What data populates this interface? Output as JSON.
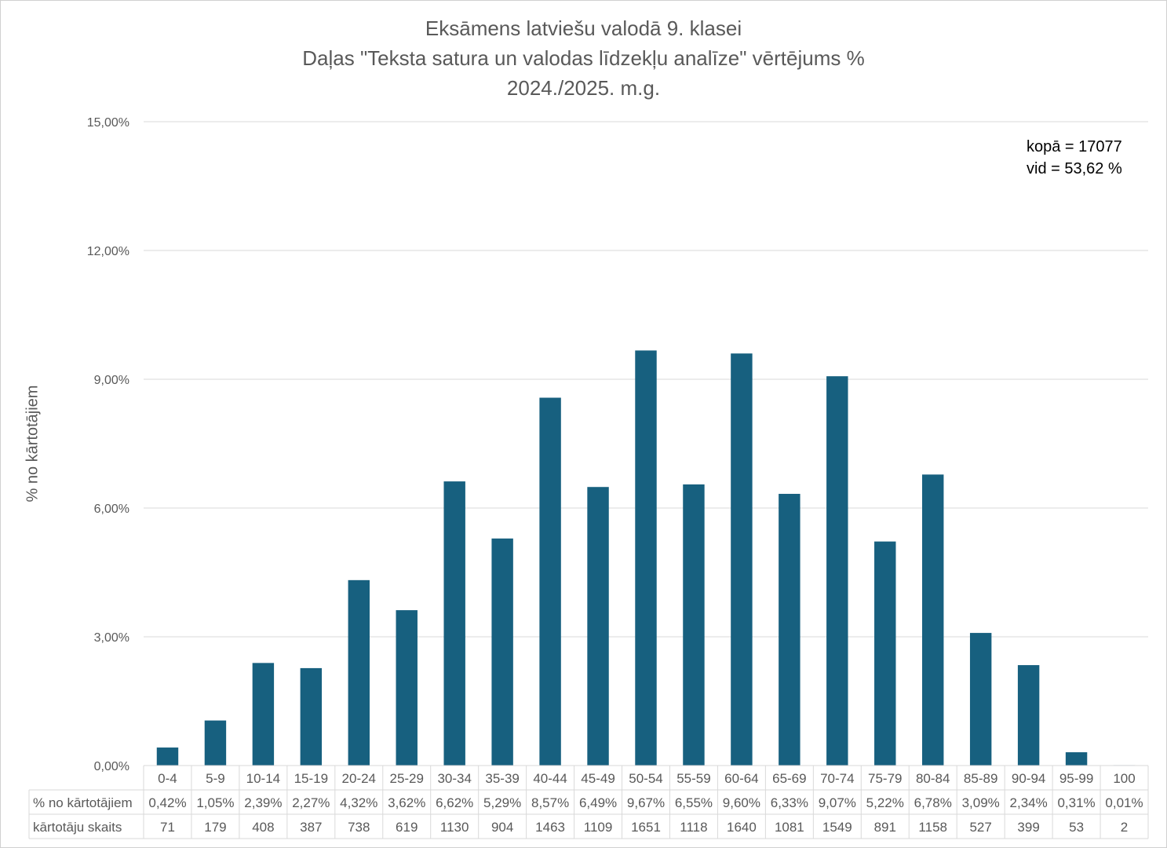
{
  "chart_data": {
    "type": "bar",
    "title_lines": [
      "Eksāmens latviešu valodā 9. klasei",
      "Daļas \"Teksta satura un valodas līdzekļu analīze\" vērtējums %",
      "2024./2025. m.g."
    ],
    "ylabel": "% no kārtotājiem",
    "ylim": [
      0,
      15
    ],
    "yticks": [
      "0,00%",
      "3,00%",
      "6,00%",
      "9,00%",
      "12,00%",
      "15,00%"
    ],
    "ytick_values": [
      0,
      3,
      6,
      9,
      12,
      15
    ],
    "grid": true,
    "legend": "none",
    "annotation": [
      "kopā = 17077",
      "vid = 53,62 %"
    ],
    "categories": [
      "0-4",
      "5-9",
      "10-14",
      "15-19",
      "20-24",
      "25-29",
      "30-34",
      "35-39",
      "40-44",
      "45-49",
      "50-54",
      "55-59",
      "60-64",
      "65-69",
      "70-74",
      "75-79",
      "80-84",
      "85-89",
      "90-94",
      "95-99",
      "100"
    ],
    "values": [
      0.42,
      1.05,
      2.39,
      2.27,
      4.32,
      3.62,
      6.62,
      5.29,
      8.57,
      6.49,
      9.67,
      6.55,
      9.6,
      6.33,
      9.07,
      5.22,
      6.78,
      3.09,
      2.34,
      0.31,
      0.01
    ],
    "table": {
      "row_labels": [
        "% no kārtotājiem",
        "kārtotāju skaits"
      ],
      "percent_labels": [
        "0,42%",
        "1,05%",
        "2,39%",
        "2,27%",
        "4,32%",
        "3,62%",
        "6,62%",
        "5,29%",
        "8,57%",
        "6,49%",
        "9,67%",
        "6,55%",
        "9,60%",
        "6,33%",
        "9,07%",
        "5,22%",
        "6,78%",
        "3,09%",
        "2,34%",
        "0,31%",
        "0,01%"
      ],
      "counts": [
        "71",
        "179",
        "408",
        "387",
        "738",
        "619",
        "1130",
        "904",
        "1463",
        "1109",
        "1651",
        "1118",
        "1640",
        "1081",
        "1549",
        "891",
        "1158",
        "527",
        "399",
        "53",
        "2"
      ]
    },
    "colors": {
      "bar": "#17607f",
      "grid": "#d9d9d9",
      "text": "#595959"
    }
  }
}
